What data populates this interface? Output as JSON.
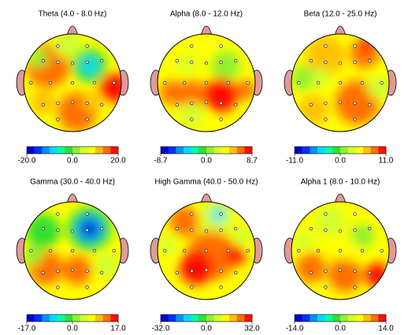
{
  "chart_data": [
    {
      "type": "topomap",
      "title": "Theta (4.0 - 8.0 Hz)",
      "clim": [
        -20,
        20
      ],
      "cticks": [
        {
          "value": -20,
          "label": "-20.0"
        },
        {
          "value": 0,
          "label": "0.0"
        },
        {
          "value": 20,
          "label": "20.0"
        }
      ]
    },
    {
      "type": "topomap",
      "title": "Alpha (8.0 - 12.0 Hz)",
      "clim": [
        -8.7,
        8.7
      ],
      "cticks": [
        {
          "value": -8.7,
          "label": "-8.7"
        },
        {
          "value": 0,
          "label": "0.0"
        },
        {
          "value": 8.7,
          "label": "8.7"
        }
      ]
    },
    {
      "type": "topomap",
      "title": "Beta (12.0 - 25.0 Hz)",
      "clim": [
        -11,
        11
      ],
      "cticks": [
        {
          "value": -11,
          "label": "-11.0"
        },
        {
          "value": 0,
          "label": "0.0"
        },
        {
          "value": 11,
          "label": "11.0"
        }
      ]
    },
    {
      "type": "topomap",
      "title": "Gamma (30.0 - 40.0 Hz)",
      "clim": [
        -17,
        17
      ],
      "cticks": [
        {
          "value": -17,
          "label": "-17.0"
        },
        {
          "value": 0,
          "label": "0.0"
        },
        {
          "value": 17,
          "label": "17.0"
        }
      ]
    },
    {
      "type": "topomap",
      "title": "High Gamma (40.0 - 50.0 Hz)",
      "clim": [
        -32,
        32
      ],
      "cticks": [
        {
          "value": -32,
          "label": "-32.0"
        },
        {
          "value": 0,
          "label": "0.0"
        },
        {
          "value": 32,
          "label": "32.0"
        }
      ]
    },
    {
      "type": "topomap",
      "title": "Alpha 1 (8.0 - 10.0 Hz)",
      "clim": [
        -14,
        14
      ],
      "cticks": [
        {
          "value": -14,
          "label": "-14.0"
        },
        {
          "value": 0,
          "label": "0.0"
        },
        {
          "value": 14,
          "label": "14.0"
        }
      ]
    }
  ]
}
